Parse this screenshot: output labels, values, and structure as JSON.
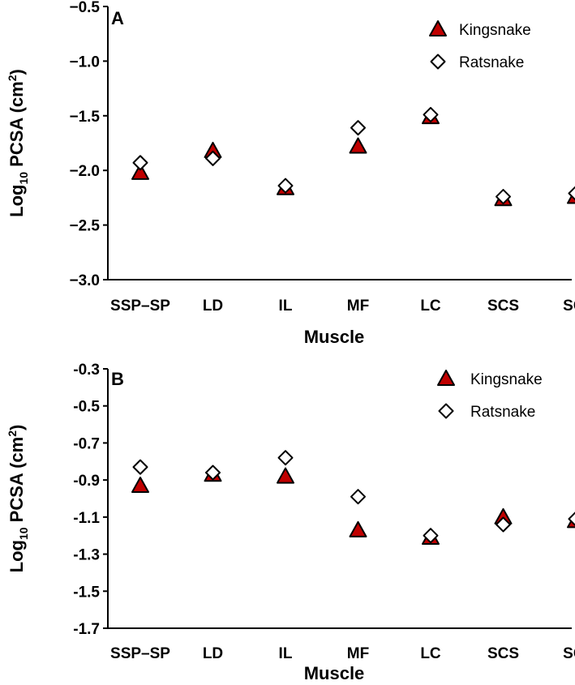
{
  "colors": {
    "kingsnake_fill": "#c00000",
    "ratsnake_fill": "#ffffff",
    "marker_stroke": "#000000",
    "axis": "#000000"
  },
  "chart_data": [
    {
      "type": "scatter",
      "panel_label": "A",
      "xlabel": "Muscle",
      "ylabel_base": "Log",
      "ylabel_sub": "10",
      "ylabel_rest": " PCSA (cm",
      "ylabel_sup": "2",
      "ylabel_close": ")",
      "categories": [
        "SSP–SP",
        "LD",
        "IL",
        "MF",
        "LC",
        "SCS",
        "SCI"
      ],
      "ylim": [
        -3.0,
        -0.5
      ],
      "yticks": [
        -0.5,
        -1.0,
        -1.5,
        -2.0,
        -2.5,
        -3.0
      ],
      "ytick_labels": [
        "−0.5",
        "−1.0",
        "−1.5",
        "−2.0",
        "−2.5",
        "−3.0"
      ],
      "legend": [
        "Kingsnake",
        "Ratsnake"
      ],
      "series": [
        {
          "name": "Kingsnake",
          "marker": "triangle",
          "values": [
            -2.02,
            -1.82,
            -2.16,
            -1.78,
            -1.51,
            -2.26,
            -2.24
          ]
        },
        {
          "name": "Ratsnake",
          "marker": "diamond",
          "values": [
            -1.93,
            -1.89,
            -2.14,
            -1.61,
            -1.49,
            -2.24,
            -2.21
          ]
        }
      ]
    },
    {
      "type": "scatter",
      "panel_label": "B",
      "xlabel": "Muscle",
      "ylabel_base": "Log",
      "ylabel_sub": "10",
      "ylabel_rest": " PCSA (cm",
      "ylabel_sup": "2",
      "ylabel_close": ")",
      "categories": [
        "SSP–SP",
        "LD",
        "IL",
        "MF",
        "LC",
        "SCS",
        "SCI"
      ],
      "ylim": [
        -1.7,
        -0.3
      ],
      "yticks": [
        -0.3,
        -0.5,
        -0.7,
        -0.9,
        -1.1,
        -1.3,
        -1.5,
        -1.7
      ],
      "ytick_labels": [
        "-0.3",
        "-0.5",
        "-0.7",
        "-0.9",
        "-1.1",
        "-1.3",
        "-1.5",
        "-1.7"
      ],
      "legend": [
        "Kingsnake",
        "Ratsnake"
      ],
      "series": [
        {
          "name": "Kingsnake",
          "marker": "triangle",
          "values": [
            -0.93,
            -0.87,
            -0.88,
            -1.17,
            -1.21,
            -1.1,
            -1.12
          ]
        },
        {
          "name": "Ratsnake",
          "marker": "diamond",
          "values": [
            -0.83,
            -0.86,
            -0.78,
            -0.99,
            -1.2,
            -1.14,
            -1.11
          ]
        }
      ]
    }
  ]
}
